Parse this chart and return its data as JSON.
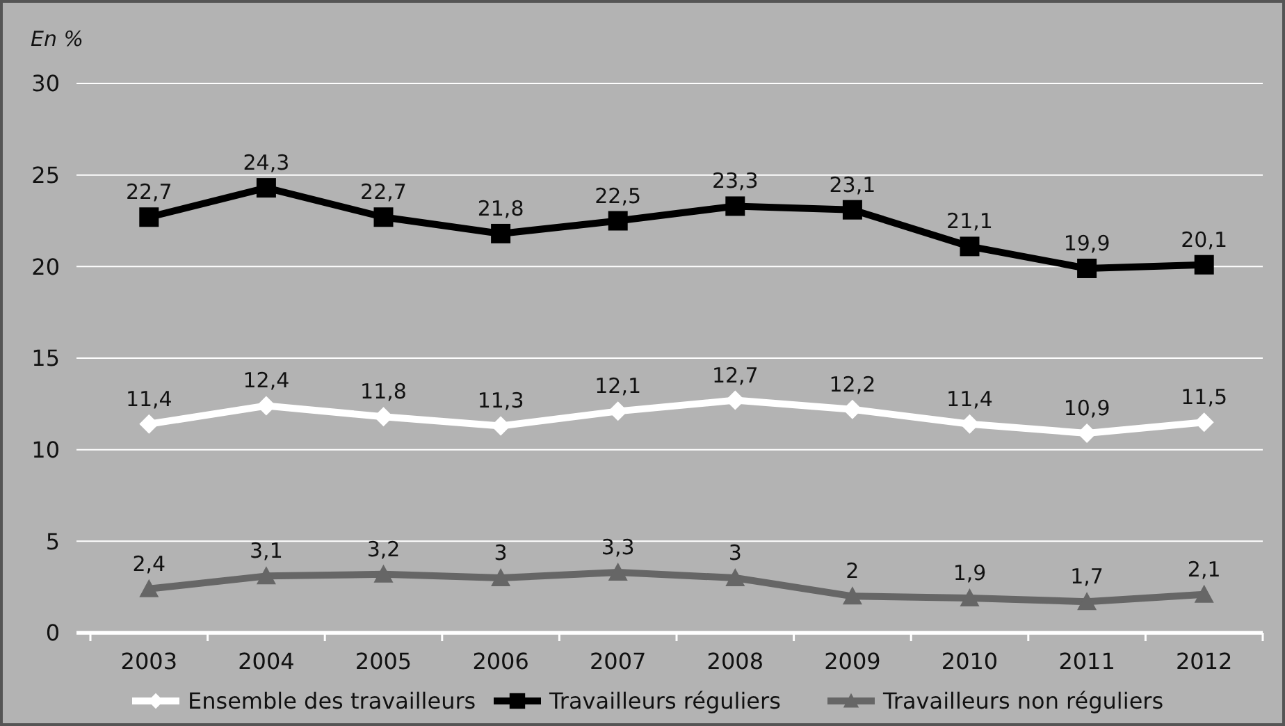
{
  "chart_data": {
    "type": "line",
    "ylabel": "En %",
    "categories": [
      "2003",
      "2004",
      "2005",
      "2006",
      "2007",
      "2008",
      "2009",
      "2010",
      "2011",
      "2012"
    ],
    "series": [
      {
        "name": "Ensemble des travailleurs",
        "color": "#ffffff",
        "marker": "diamond",
        "values": [
          11.4,
          12.4,
          11.8,
          11.3,
          12.1,
          12.7,
          12.2,
          11.4,
          10.9,
          11.5
        ],
        "value_labels": [
          "11,4",
          "12,4",
          "11,8",
          "11,3",
          "12,1",
          "12,7",
          "12,2",
          "11,4",
          "10,9",
          "11,5"
        ]
      },
      {
        "name": "Travailleurs réguliers",
        "color": "#000000",
        "marker": "square",
        "values": [
          22.7,
          24.3,
          22.7,
          21.8,
          22.5,
          23.3,
          23.1,
          21.1,
          19.9,
          20.1
        ],
        "value_labels": [
          "22,7",
          "24,3",
          "22,7",
          "21,8",
          "22,5",
          "23,3",
          "23,1",
          "21,1",
          "19,9",
          "20,1"
        ]
      },
      {
        "name": "Travailleurs non réguliers",
        "color": "#666666",
        "marker": "triangle",
        "values": [
          2.4,
          3.1,
          3.2,
          3,
          3.3,
          3,
          2,
          1.9,
          1.7,
          2.1
        ],
        "value_labels": [
          "2,4",
          "3,1",
          "3,2",
          "3",
          "3,3",
          "3",
          "2",
          "1,9",
          "1,7",
          "2,1"
        ]
      }
    ],
    "ylim": [
      0,
      30
    ],
    "yticks": [
      0,
      5,
      10,
      15,
      20,
      25,
      30
    ],
    "grid": "y",
    "legend": "bottom",
    "line_style": "solid"
  }
}
